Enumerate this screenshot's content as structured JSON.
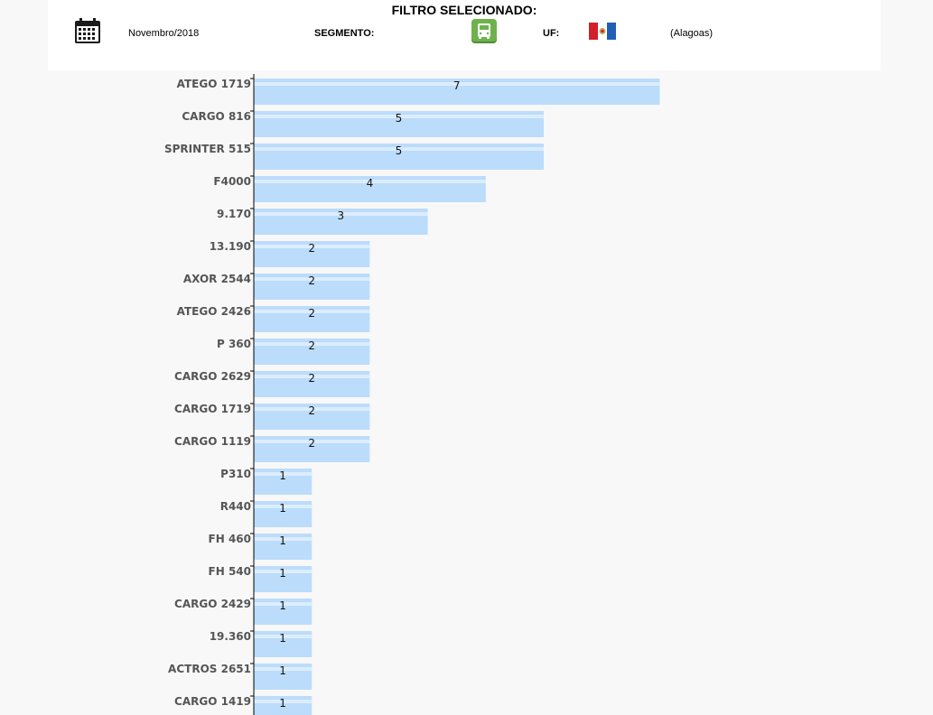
{
  "filter": {
    "title": "FILTRO SELECIONADO:",
    "date": "Novembro/2018",
    "segment_label": "SEGMENTO:",
    "uf_label": "UF:",
    "state": "(Alagoas)",
    "icons": {
      "calendar": "calendar-icon",
      "segment": "truck-icon",
      "uf": "alagoas-flag-icon"
    }
  },
  "chart_data": {
    "type": "bar",
    "orientation": "horizontal",
    "categories": [
      "ATEGO 1719",
      "CARGO 816",
      "SPRINTER 515",
      "F4000",
      "9.170",
      "13.190",
      "AXOR 2544",
      "ATEGO 2426",
      "P 360",
      "CARGO 2629",
      "CARGO 1719",
      "CARGO 1119",
      "P310",
      "R440",
      "FH 460",
      "FH 540",
      "CARGO 2429",
      "19.360",
      "ACTROS 2651",
      "CARGO 1419"
    ],
    "values": [
      7,
      5,
      5,
      4,
      3,
      2,
      2,
      2,
      2,
      2,
      2,
      2,
      1,
      1,
      1,
      1,
      1,
      1,
      1,
      1
    ],
    "data_labels": true,
    "bar_color": "#bcdcfb",
    "bar_highlight_color": "#dcedfd",
    "axis_color": "#000000"
  }
}
